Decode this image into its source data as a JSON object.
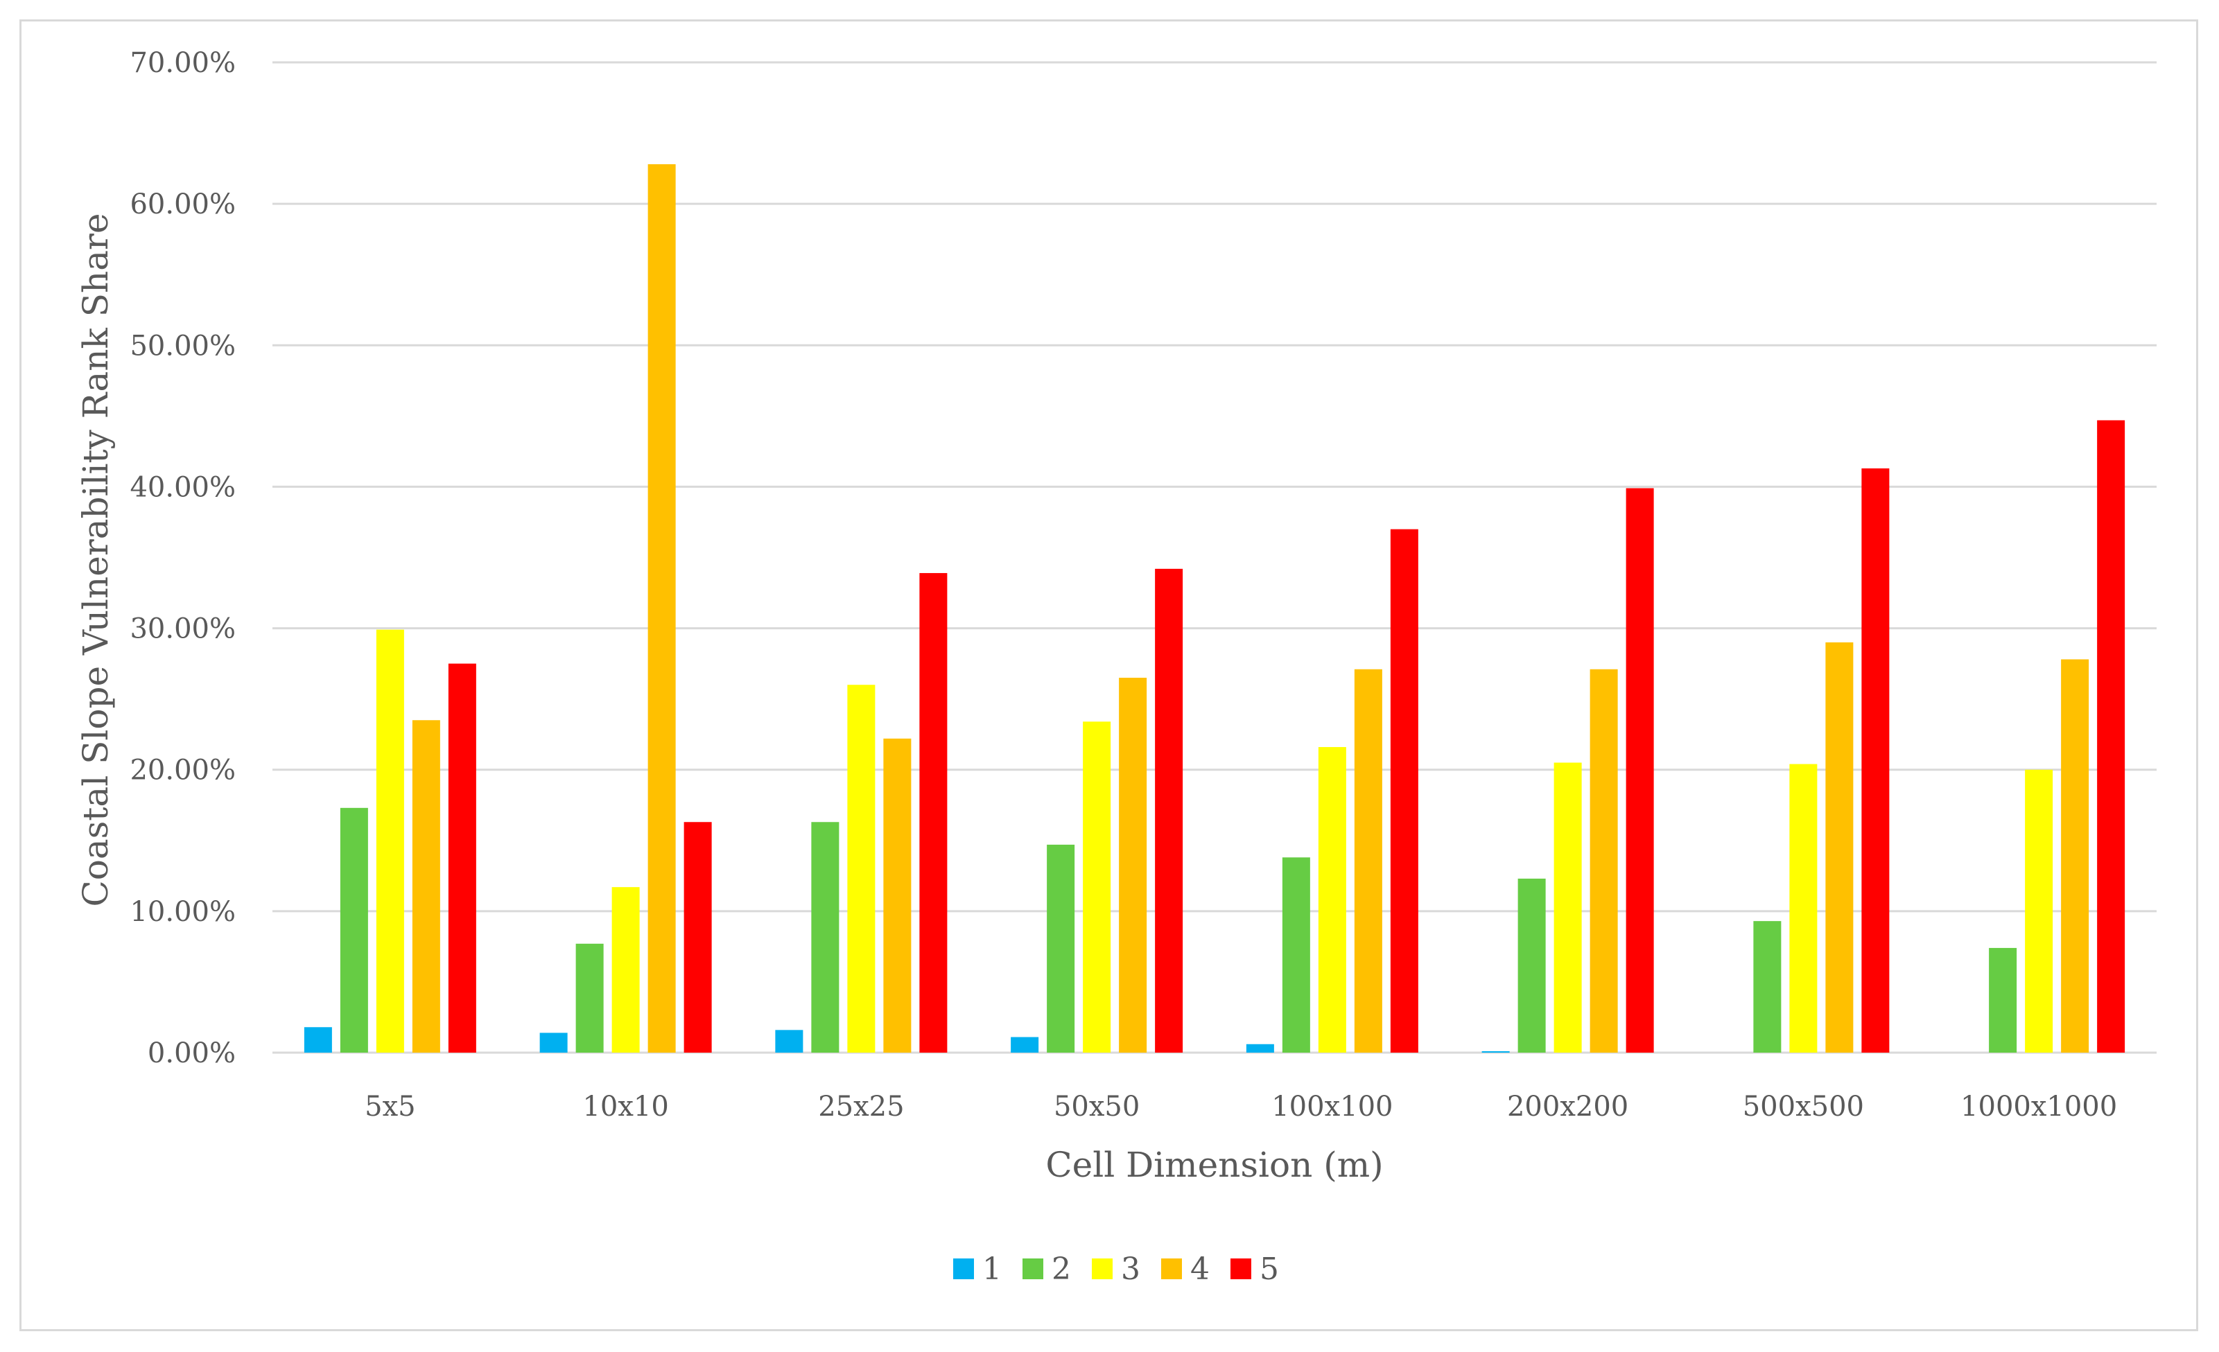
{
  "chart_data": {
    "type": "bar",
    "title": "",
    "xlabel": "Cell Dimension (m)",
    "ylabel": "Coastal Slope Vulnerability Rank Share",
    "ylim": [
      0,
      70
    ],
    "y_ticks": [
      "0.00%",
      "10.00%",
      "20.00%",
      "30.00%",
      "40.00%",
      "50.00%",
      "60.00%",
      "70.00%"
    ],
    "grid": true,
    "legend_position": "bottom",
    "categories": [
      "5x5",
      "10x10",
      "25x25",
      "50x50",
      "100x100",
      "200x200",
      "500x500",
      "1000x1000"
    ],
    "series": [
      {
        "name": "1",
        "color": "#00b0f0",
        "values": [
          1.8,
          1.4,
          1.6,
          1.1,
          0.6,
          0.1,
          0.0,
          0.0
        ]
      },
      {
        "name": "2",
        "color": "#66cc44",
        "values": [
          17.3,
          7.7,
          16.3,
          14.7,
          13.8,
          12.3,
          9.3,
          7.4
        ]
      },
      {
        "name": "3",
        "color": "#ffff00",
        "values": [
          29.9,
          11.7,
          26.0,
          23.4,
          21.6,
          20.5,
          20.4,
          20.0
        ]
      },
      {
        "name": "4",
        "color": "#ffc000",
        "values": [
          23.5,
          62.8,
          22.2,
          26.5,
          27.1,
          27.1,
          29.0,
          27.8
        ]
      },
      {
        "name": "5",
        "color": "#ff0000",
        "values": [
          27.5,
          16.3,
          33.9,
          34.2,
          37.0,
          39.9,
          41.3,
          44.7
        ]
      }
    ]
  }
}
